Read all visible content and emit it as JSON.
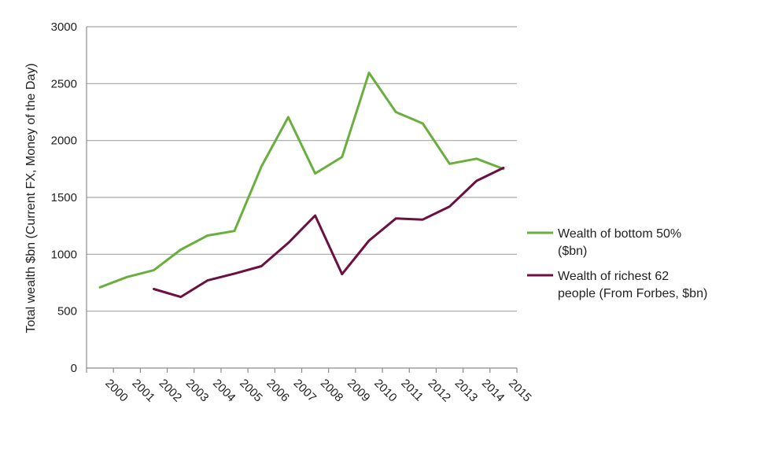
{
  "chart_data": {
    "type": "line",
    "ylabel": "Total wealth $bn (Current FX, Money of the Day)",
    "xlabel": "",
    "ylim": [
      0,
      3000
    ],
    "yticks": [
      0,
      500,
      1000,
      1500,
      2000,
      2500,
      3000
    ],
    "categories": [
      "2000",
      "2001",
      "2002",
      "2003",
      "2004",
      "2005",
      "2006",
      "2007",
      "2008",
      "2009",
      "2010",
      "2011",
      "2012",
      "2013",
      "2014",
      "2015"
    ],
    "grid": "horizontal",
    "legend_position": "right",
    "series": [
      {
        "name_lines": [
          "Wealth of bottom 50%",
          "($bn)"
        ],
        "color": "#6aaf3d",
        "values": [
          710,
          800,
          860,
          1040,
          1165,
          1205,
          1770,
          2205,
          1710,
          1855,
          2595,
          2250,
          2150,
          1795,
          1840,
          1750
        ]
      },
      {
        "name_lines": [
          "Wealth of richest 62",
          "people (From Forbes, $bn)"
        ],
        "color": "#6b1040",
        "values": [
          null,
          null,
          695,
          625,
          770,
          830,
          895,
          1100,
          1340,
          825,
          1120,
          1315,
          1305,
          1420,
          1645,
          1760
        ]
      }
    ]
  }
}
